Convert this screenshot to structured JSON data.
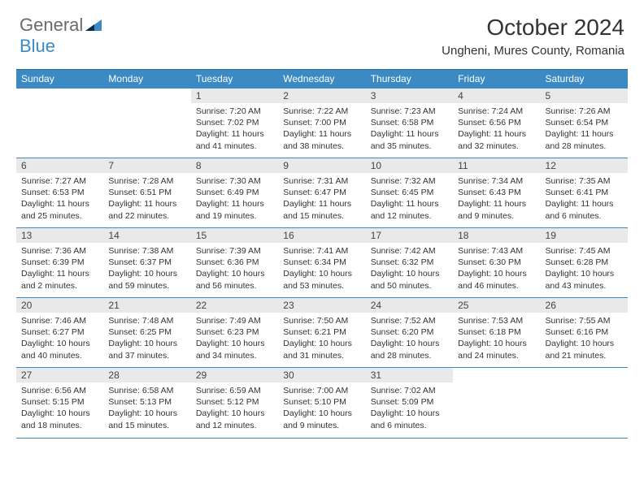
{
  "brand": {
    "part1": "General",
    "part2": "Blue"
  },
  "title": "October 2024",
  "location": "Ungheni, Mures County, Romania",
  "colors": {
    "header_bg": "#3b8ac4",
    "header_text": "#ffffff",
    "daynum_bg": "#e9e9e9",
    "border": "#3b8ac4",
    "body_text": "#333333",
    "logo_gray": "#6a6a6a",
    "logo_blue": "#3b8ac4",
    "page_bg": "#ffffff"
  },
  "day_headers": [
    "Sunday",
    "Monday",
    "Tuesday",
    "Wednesday",
    "Thursday",
    "Friday",
    "Saturday"
  ],
  "weeks": [
    [
      null,
      null,
      {
        "n": "1",
        "sunrise": "7:20 AM",
        "sunset": "7:02 PM",
        "daylight": "11 hours and 41 minutes."
      },
      {
        "n": "2",
        "sunrise": "7:22 AM",
        "sunset": "7:00 PM",
        "daylight": "11 hours and 38 minutes."
      },
      {
        "n": "3",
        "sunrise": "7:23 AM",
        "sunset": "6:58 PM",
        "daylight": "11 hours and 35 minutes."
      },
      {
        "n": "4",
        "sunrise": "7:24 AM",
        "sunset": "6:56 PM",
        "daylight": "11 hours and 32 minutes."
      },
      {
        "n": "5",
        "sunrise": "7:26 AM",
        "sunset": "6:54 PM",
        "daylight": "11 hours and 28 minutes."
      }
    ],
    [
      {
        "n": "6",
        "sunrise": "7:27 AM",
        "sunset": "6:53 PM",
        "daylight": "11 hours and 25 minutes."
      },
      {
        "n": "7",
        "sunrise": "7:28 AM",
        "sunset": "6:51 PM",
        "daylight": "11 hours and 22 minutes."
      },
      {
        "n": "8",
        "sunrise": "7:30 AM",
        "sunset": "6:49 PM",
        "daylight": "11 hours and 19 minutes."
      },
      {
        "n": "9",
        "sunrise": "7:31 AM",
        "sunset": "6:47 PM",
        "daylight": "11 hours and 15 minutes."
      },
      {
        "n": "10",
        "sunrise": "7:32 AM",
        "sunset": "6:45 PM",
        "daylight": "11 hours and 12 minutes."
      },
      {
        "n": "11",
        "sunrise": "7:34 AM",
        "sunset": "6:43 PM",
        "daylight": "11 hours and 9 minutes."
      },
      {
        "n": "12",
        "sunrise": "7:35 AM",
        "sunset": "6:41 PM",
        "daylight": "11 hours and 6 minutes."
      }
    ],
    [
      {
        "n": "13",
        "sunrise": "7:36 AM",
        "sunset": "6:39 PM",
        "daylight": "11 hours and 2 minutes."
      },
      {
        "n": "14",
        "sunrise": "7:38 AM",
        "sunset": "6:37 PM",
        "daylight": "10 hours and 59 minutes."
      },
      {
        "n": "15",
        "sunrise": "7:39 AM",
        "sunset": "6:36 PM",
        "daylight": "10 hours and 56 minutes."
      },
      {
        "n": "16",
        "sunrise": "7:41 AM",
        "sunset": "6:34 PM",
        "daylight": "10 hours and 53 minutes."
      },
      {
        "n": "17",
        "sunrise": "7:42 AM",
        "sunset": "6:32 PM",
        "daylight": "10 hours and 50 minutes."
      },
      {
        "n": "18",
        "sunrise": "7:43 AM",
        "sunset": "6:30 PM",
        "daylight": "10 hours and 46 minutes."
      },
      {
        "n": "19",
        "sunrise": "7:45 AM",
        "sunset": "6:28 PM",
        "daylight": "10 hours and 43 minutes."
      }
    ],
    [
      {
        "n": "20",
        "sunrise": "7:46 AM",
        "sunset": "6:27 PM",
        "daylight": "10 hours and 40 minutes."
      },
      {
        "n": "21",
        "sunrise": "7:48 AM",
        "sunset": "6:25 PM",
        "daylight": "10 hours and 37 minutes."
      },
      {
        "n": "22",
        "sunrise": "7:49 AM",
        "sunset": "6:23 PM",
        "daylight": "10 hours and 34 minutes."
      },
      {
        "n": "23",
        "sunrise": "7:50 AM",
        "sunset": "6:21 PM",
        "daylight": "10 hours and 31 minutes."
      },
      {
        "n": "24",
        "sunrise": "7:52 AM",
        "sunset": "6:20 PM",
        "daylight": "10 hours and 28 minutes."
      },
      {
        "n": "25",
        "sunrise": "7:53 AM",
        "sunset": "6:18 PM",
        "daylight": "10 hours and 24 minutes."
      },
      {
        "n": "26",
        "sunrise": "7:55 AM",
        "sunset": "6:16 PM",
        "daylight": "10 hours and 21 minutes."
      }
    ],
    [
      {
        "n": "27",
        "sunrise": "6:56 AM",
        "sunset": "5:15 PM",
        "daylight": "10 hours and 18 minutes."
      },
      {
        "n": "28",
        "sunrise": "6:58 AM",
        "sunset": "5:13 PM",
        "daylight": "10 hours and 15 minutes."
      },
      {
        "n": "29",
        "sunrise": "6:59 AM",
        "sunset": "5:12 PM",
        "daylight": "10 hours and 12 minutes."
      },
      {
        "n": "30",
        "sunrise": "7:00 AM",
        "sunset": "5:10 PM",
        "daylight": "10 hours and 9 minutes."
      },
      {
        "n": "31",
        "sunrise": "7:02 AM",
        "sunset": "5:09 PM",
        "daylight": "10 hours and 6 minutes."
      },
      null,
      null
    ]
  ],
  "labels": {
    "sunrise": "Sunrise:",
    "sunset": "Sunset:",
    "daylight": "Daylight:"
  }
}
